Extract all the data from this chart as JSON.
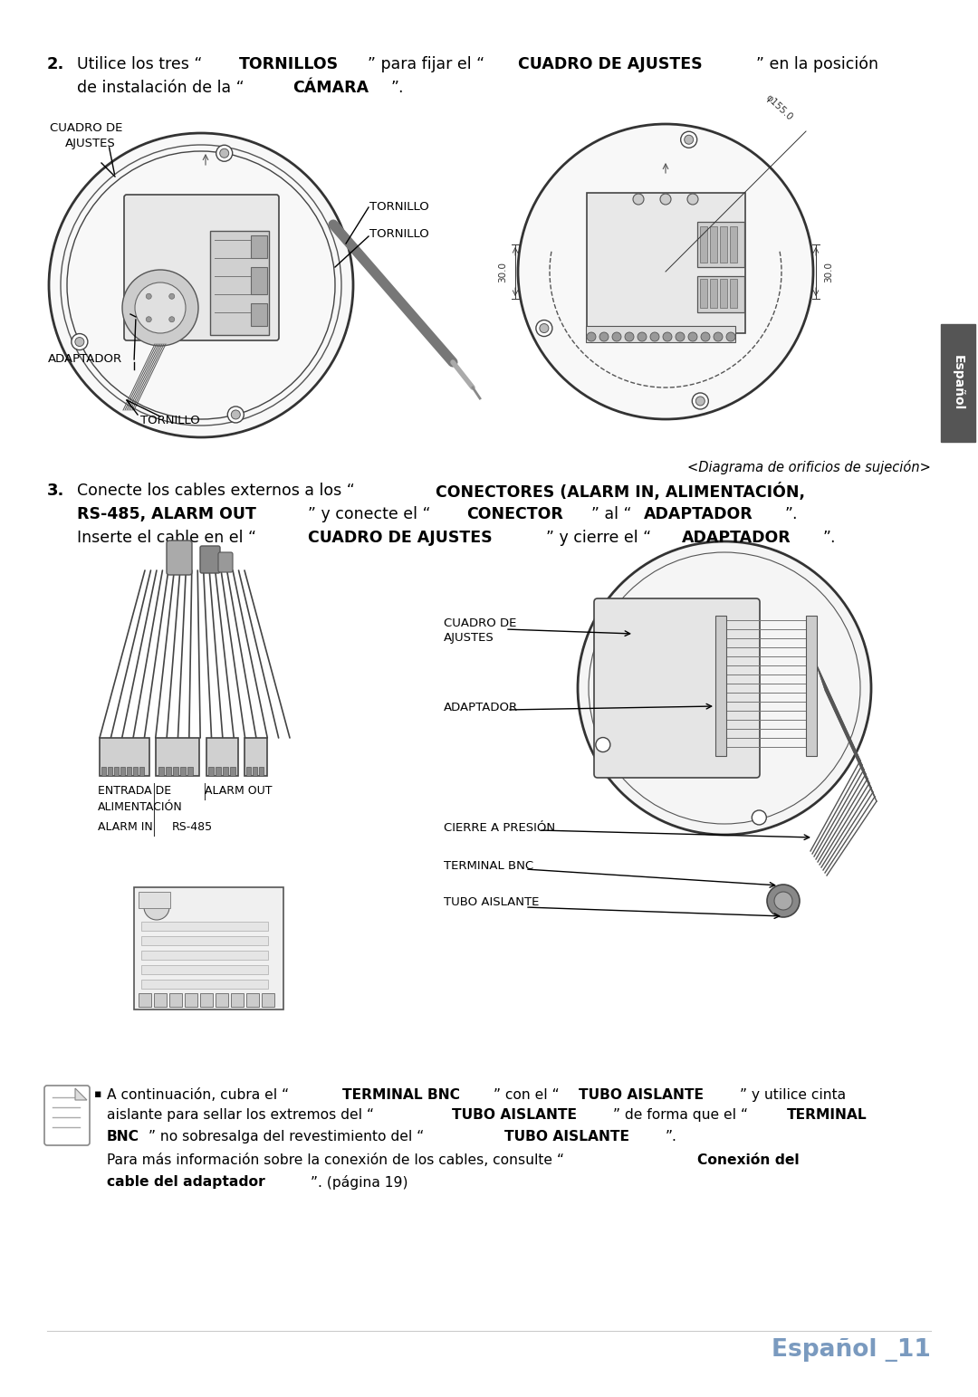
{
  "bg_color": "#ffffff",
  "page_width": 10.8,
  "page_height": 15.43,
  "text_color": "#000000",
  "footer_color": "#7a9abf",
  "tab_color": "#555555",
  "line1_normal1": "Utilice los tres “",
  "line1_bold1": "TORNILLOS",
  "line1_normal2": "” para fijar el “",
  "line1_bold2": "CUADRO DE AJUSTES",
  "line1_normal3": "” en la posición",
  "line2_normal1": "de instalación de la “",
  "line2_bold1": "CÁMARA",
  "line2_normal2": "”.",
  "s3l1_n1": "Conecte los cables externos a los “",
  "s3l1_b1": "CONECTORES (ALARM IN, ALIMENTACIÓN,",
  "s3l2_b1": "RS-485, ALARM OUT",
  "s3l2_n1": "” y conecte el “",
  "s3l2_b2": "CONECTOR",
  "s3l2_n2": "” al “",
  "s3l2_b3": "ADAPTADOR",
  "s3l2_n3": "”.",
  "s3l3_n1": "Inserte el cable en el “",
  "s3l3_b1": "CUADRO DE AJUSTES",
  "s3l3_n2": "” y cierre el “",
  "s3l3_b2": "ADAPTADOR",
  "s3l3_n3": "”.",
  "lbl_cuadro_de": "CUADRO DE",
  "lbl_ajustes": "AJUSTES",
  "lbl_adaptador": "ADAPTADOR",
  "lbl_tornillo_r": "TORNILLO",
  "lbl_tornillo_l": "TORNILLO",
  "lbl_tornillo_b": "TORNILLO",
  "lbl_diagrama": "<Diagrama de orificios de sujeción>",
  "lbl_espanol_tab": "Español",
  "lbl_entrada": "ENTRADA DE",
  "lbl_alim": "ALIMENTACIÓN",
  "lbl_alarm_out": "ALARM OUT",
  "lbl_alarm_in": "ALARM IN",
  "lbl_rs485": "RS-485",
  "lbl_cuadro2": "CUADRO DE",
  "lbl_ajustes2": "AJUSTES",
  "lbl_adaptador2": "ADAPTADOR",
  "lbl_cierre": "CIERRE A PRESIÓN",
  "lbl_terminal": "TERMINAL BNC",
  "lbl_tubo": "TUBO AISLANTE",
  "note_b1": "TERMINAL BNC",
  "note_b2": "TUBO AISLANTE",
  "note_b3": "TUBO AISLANTE",
  "note_b4": "TERMINAL",
  "note_b5": "TUBO AISLANTE",
  "note_b6": "Conexión del",
  "note_b7": "cable del adaptador",
  "footer": "Español _11"
}
